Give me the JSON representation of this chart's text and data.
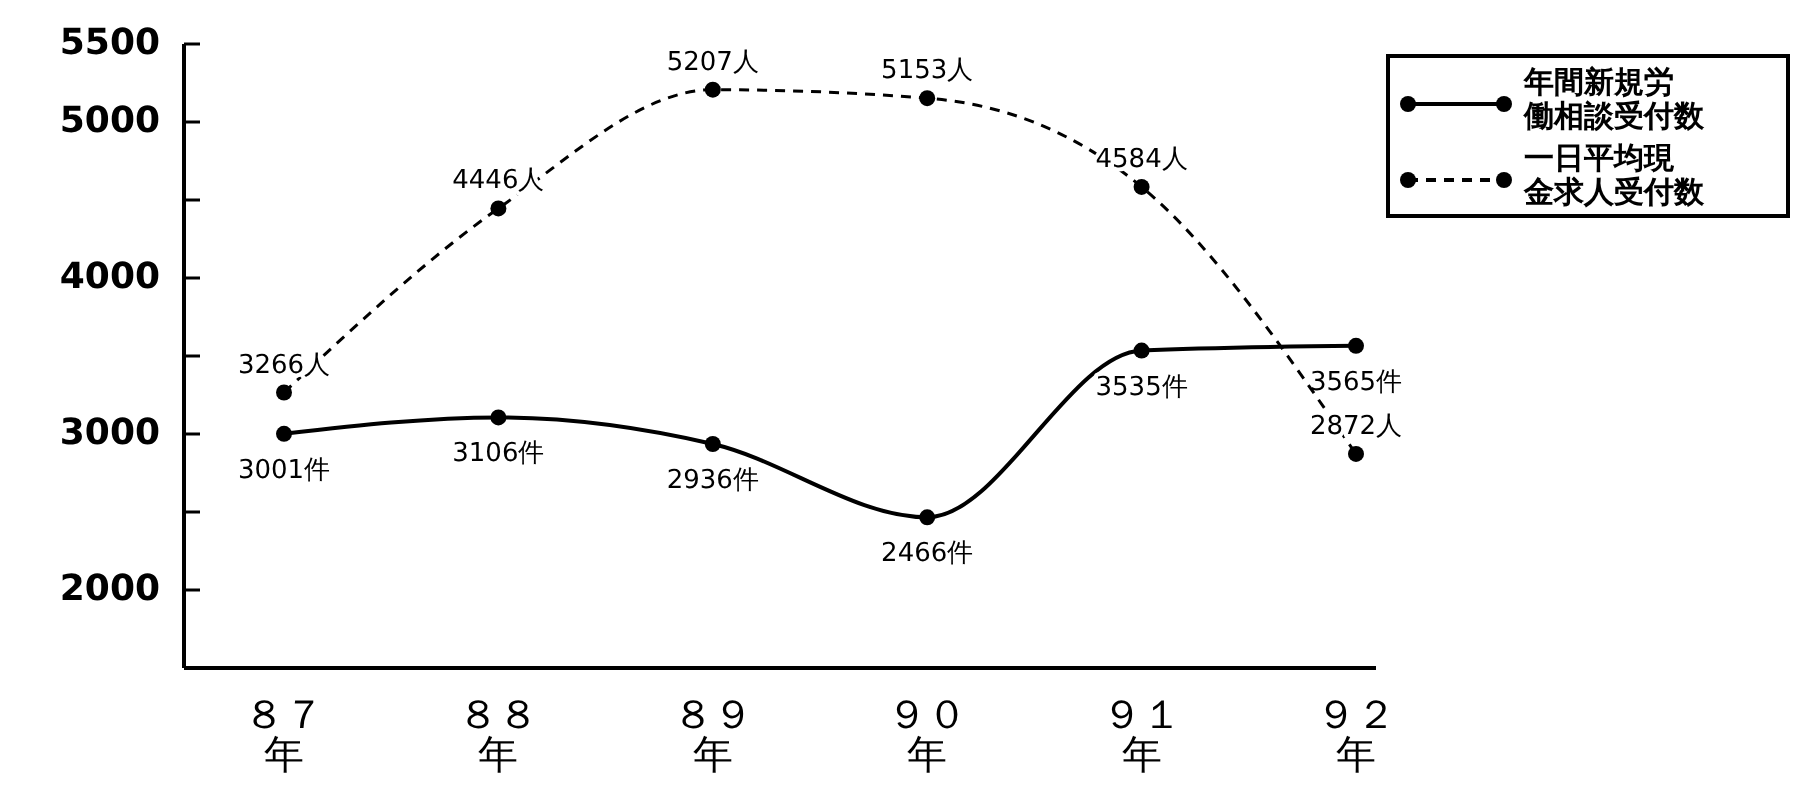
{
  "chart_data": {
    "type": "line",
    "categories": [
      "８７年",
      "８８年",
      "８９年",
      "９０年",
      "９１年",
      "９２年"
    ],
    "ylim": [
      1500,
      5500
    ],
    "yticks": [
      {
        "value": 2000,
        "label": "2000"
      },
      {
        "value": 2500,
        "label": null
      },
      {
        "value": 3000,
        "label": "3000"
      },
      {
        "value": 3500,
        "label": null
      },
      {
        "value": 4000,
        "label": "4000"
      },
      {
        "value": 4500,
        "label": null
      },
      {
        "value": 5000,
        "label": "5000"
      },
      {
        "value": 5500,
        "label": "5500"
      }
    ],
    "series": [
      {
        "name": "年間新規労働相談受付数",
        "color": "#000000",
        "line_style": "solid",
        "values": [
          3001,
          3106,
          2936,
          2466,
          3535,
          3565
        ],
        "value_labels": [
          "3001件",
          "3106件",
          "2936件",
          "2466件",
          "3535件",
          "3565件"
        ]
      },
      {
        "name": "一日平均現金求人受付数",
        "color": "#000000",
        "line_style": "dashed",
        "values": [
          3266,
          4446,
          5207,
          5153,
          4584,
          2872
        ],
        "value_labels": [
          "3266人",
          "4446人",
          "5207人",
          "5153人",
          "4584人",
          "2872人"
        ]
      }
    ],
    "marker": "circle",
    "grid": false,
    "legend": "top right"
  }
}
